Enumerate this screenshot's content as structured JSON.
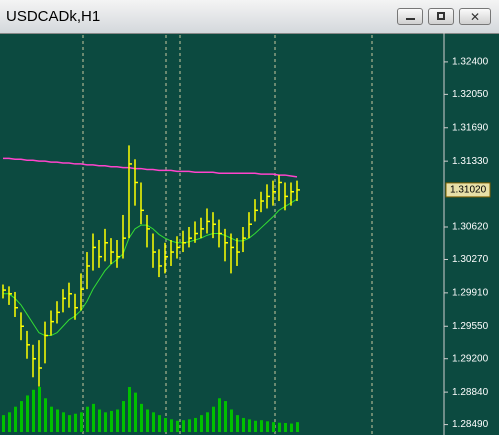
{
  "window": {
    "title": "USDCADk,H1"
  },
  "chart_data": {
    "type": "ohlc",
    "ylim": [
      1.2841,
      1.3269
    ],
    "yticks": [
      {
        "value": 1.324,
        "label": "1.32400"
      },
      {
        "value": 1.3205,
        "label": "1.32050"
      },
      {
        "value": 1.3169,
        "label": "1.31690"
      },
      {
        "value": 1.3133,
        "label": "1.31330"
      },
      {
        "value": 1.3062,
        "label": "1.30620"
      },
      {
        "value": 1.3027,
        "label": "1.30270"
      },
      {
        "value": 1.2991,
        "label": "1.29910"
      },
      {
        "value": 1.2955,
        "label": "1.29550"
      },
      {
        "value": 1.292,
        "label": "1.29200"
      },
      {
        "value": 1.2884,
        "label": "1.28840"
      },
      {
        "value": 1.2849,
        "label": "1.28490"
      }
    ],
    "current_price": {
      "value": 1.3102,
      "label": "1.31020"
    },
    "bar_color": "#ffff00",
    "volume_color": "#00c000",
    "high": [
      1.3,
      1.2998,
      1.2992,
      1.297,
      1.295,
      1.2935,
      1.294,
      1.296,
      1.2972,
      1.2982,
      1.2995,
      1.3002,
      1.299,
      1.3012,
      1.3035,
      1.3055,
      1.3048,
      1.306,
      1.305,
      1.3048,
      1.3075,
      1.315,
      1.3135,
      1.311,
      1.3075,
      1.3055,
      1.3038,
      1.3045,
      1.3048,
      1.3052,
      1.3058,
      1.3062,
      1.3068,
      1.3072,
      1.3082,
      1.3078,
      1.307,
      1.306,
      1.3055,
      1.305,
      1.3062,
      1.3078,
      1.3092,
      1.31,
      1.3108,
      1.3112,
      1.3118,
      1.311,
      1.311,
      1.3112
    ],
    "low": [
      1.2985,
      1.2978,
      1.2965,
      1.294,
      1.292,
      1.29,
      1.289,
      1.2915,
      1.2945,
      1.2958,
      1.297,
      1.2975,
      1.2962,
      1.2972,
      1.2995,
      1.3015,
      1.3018,
      1.3025,
      1.3022,
      1.3018,
      1.3028,
      1.305,
      1.3085,
      1.3065,
      1.304,
      1.3018,
      1.3008,
      1.3012,
      1.302,
      1.3028,
      1.3035,
      1.304,
      1.3045,
      1.305,
      1.3055,
      1.305,
      1.304,
      1.3025,
      1.3012,
      1.302,
      1.3035,
      1.305,
      1.3068,
      1.3078,
      1.3082,
      1.3085,
      1.309,
      1.308,
      1.3085,
      1.309
    ],
    "close": [
      1.2994,
      1.299,
      1.2975,
      1.2955,
      1.2935,
      1.292,
      1.291,
      1.2945,
      1.296,
      1.297,
      1.2985,
      1.299,
      1.2975,
      1.2995,
      1.302,
      1.304,
      1.303,
      1.3045,
      1.3035,
      1.303,
      1.305,
      1.313,
      1.311,
      1.308,
      1.306,
      1.3035,
      1.302,
      1.303,
      1.3035,
      1.304,
      1.3045,
      1.305,
      1.3055,
      1.306,
      1.3068,
      1.3065,
      1.3055,
      1.3045,
      1.304,
      1.3035,
      1.305,
      1.3065,
      1.308,
      1.309,
      1.3095,
      1.31,
      1.311,
      1.3095,
      1.31,
      1.3102
    ],
    "volume": [
      600,
      700,
      900,
      1100,
      1300,
      1500,
      1600,
      1200,
      900,
      800,
      700,
      600,
      650,
      700,
      900,
      1000,
      800,
      700,
      750,
      800,
      1100,
      1600,
      1400,
      1000,
      800,
      700,
      600,
      500,
      450,
      400,
      420,
      450,
      500,
      600,
      700,
      900,
      1200,
      1100,
      800,
      600,
      500,
      450,
      400,
      420,
      380,
      350,
      330,
      320,
      300,
      350
    ],
    "series": [
      {
        "color": "#ff44cc",
        "values": [
          1.3136,
          1.3136,
          1.3135,
          1.3135,
          1.3134,
          1.3134,
          1.3133,
          1.3133,
          1.3132,
          1.3132,
          1.3131,
          1.3131,
          1.313,
          1.313,
          1.3129,
          1.3129,
          1.3128,
          1.3128,
          1.3127,
          1.3127,
          1.3126,
          1.3126,
          1.3125,
          1.3125,
          1.3124,
          1.3124,
          1.3123,
          1.3123,
          1.3123,
          1.3122,
          1.3122,
          1.3122,
          1.3121,
          1.3121,
          1.3121,
          1.3121,
          1.312,
          1.312,
          1.312,
          1.312,
          1.312,
          1.312,
          1.312,
          1.3119,
          1.3119,
          1.3119,
          1.3118,
          1.3118,
          1.3117,
          1.3116
        ]
      },
      {
        "color": "#33dd33",
        "values": [
          1.299,
          1.299,
          1.2985,
          1.2978,
          1.2968,
          1.2958,
          1.2948,
          1.2945,
          1.2945,
          1.2948,
          1.2955,
          1.2962,
          1.2966,
          1.2972,
          1.2982,
          1.2995,
          1.3005,
          1.3015,
          1.3022,
          1.3027,
          1.3033,
          1.305,
          1.306,
          1.3064,
          1.3064,
          1.306,
          1.3054,
          1.305,
          1.3047,
          1.3045,
          1.3045,
          1.3046,
          1.3048,
          1.305,
          1.3053,
          1.3055,
          1.3055,
          1.3053,
          1.305,
          1.3047,
          1.3047,
          1.305,
          1.3055,
          1.3061,
          1.3067,
          1.3073,
          1.308,
          1.3084,
          1.3088,
          1.3092
        ]
      }
    ]
  }
}
